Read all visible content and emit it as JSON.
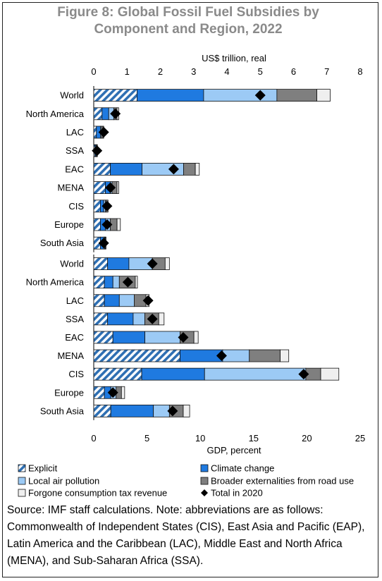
{
  "title_line1": "Figure 8: Global Fossil Fuel Subsidies by",
  "title_line2": "Component and Region, 2022",
  "source_note": "Source: IMF staff calculations. Note: abbreviations are as follows: Commonwealth of Independent States (CIS), East Asia and Pacific (EAP), Latin America and the Caribbean (LAC), Middle East and North Africa (MENA), and Sub-Saharan Africa (SSA).",
  "colors": {
    "explicit_stripe": "#2e6fb3",
    "climate": "#1f7ae0",
    "local_air": "#9ccaf5",
    "road": "#7f7f7f",
    "tax": "#efefef",
    "total": "#000000"
  },
  "chart_data": [
    {
      "type": "bar",
      "orientation": "horizontal",
      "stacked": true,
      "xlabel": "US$ trillion, real",
      "xlim": [
        0,
        8
      ],
      "xticks": [
        "0",
        "1",
        "2",
        "3",
        "4",
        "5",
        "6",
        "7",
        "8"
      ],
      "categories": [
        "World",
        "North America",
        "LAC",
        "SSA",
        "EAC",
        "MENA",
        "CIS",
        "Europe",
        "South Asia"
      ],
      "series": [
        {
          "name": "Explicit",
          "values": [
            1.3,
            0.25,
            0.08,
            0.03,
            0.5,
            0.35,
            0.2,
            0.2,
            0.2
          ]
        },
        {
          "name": "Climate change",
          "values": [
            2.0,
            0.2,
            0.12,
            0.03,
            0.95,
            0.15,
            0.1,
            0.15,
            0.1
          ]
        },
        {
          "name": "Local air pollution",
          "values": [
            2.2,
            0.15,
            0.03,
            0.02,
            1.25,
            0.05,
            0.05,
            0.15,
            0.03
          ]
        },
        {
          "name": "Broader externalities from road use",
          "values": [
            1.2,
            0.1,
            0.05,
            0.02,
            0.35,
            0.15,
            0.05,
            0.2,
            0.02
          ]
        },
        {
          "name": "Forgone consumption tax revenue",
          "values": [
            0.4,
            0.05,
            0.02,
            0.01,
            0.12,
            0.05,
            0.03,
            0.1,
            0.02
          ]
        }
      ],
      "total_2020": {
        "name": "Total in 2020",
        "values": [
          5.0,
          0.65,
          0.3,
          0.1,
          2.4,
          0.5,
          0.4,
          0.4,
          0.3
        ]
      }
    },
    {
      "type": "bar",
      "orientation": "horizontal",
      "stacked": true,
      "xlabel": "GDP, percent",
      "xlim": [
        0,
        25
      ],
      "xticks": [
        "0",
        "5",
        "10",
        "15",
        "20",
        "25"
      ],
      "categories": [
        "World",
        "North America",
        "LAC",
        "SSA",
        "EAC",
        "MENA",
        "CIS",
        "Europe",
        "South Asia"
      ],
      "series": [
        {
          "name": "Explicit",
          "values": [
            1.3,
            1.0,
            1.0,
            1.3,
            1.8,
            8.1,
            4.5,
            1.0,
            1.6
          ]
        },
        {
          "name": "Climate change",
          "values": [
            2.0,
            0.8,
            1.4,
            2.4,
            3.0,
            4.0,
            5.9,
            0.6,
            4.0
          ]
        },
        {
          "name": "Local air pollution",
          "values": [
            2.2,
            0.6,
            1.4,
            1.1,
            3.3,
            2.5,
            9.5,
            0.5,
            1.5
          ]
        },
        {
          "name": "Broader externalities from road use",
          "values": [
            1.2,
            1.5,
            1.1,
            1.3,
            1.3,
            2.9,
            1.4,
            0.5,
            1.3
          ]
        },
        {
          "name": "Forgone consumption tax revenue",
          "values": [
            0.4,
            0.2,
            0.3,
            0.5,
            0.4,
            0.8,
            1.7,
            0.3,
            0.6
          ]
        }
      ],
      "total_2020": {
        "name": "Total in 2020",
        "values": [
          5.5,
          3.2,
          5.1,
          5.5,
          8.4,
          12.0,
          19.7,
          1.8,
          7.4
        ]
      }
    }
  ]
}
